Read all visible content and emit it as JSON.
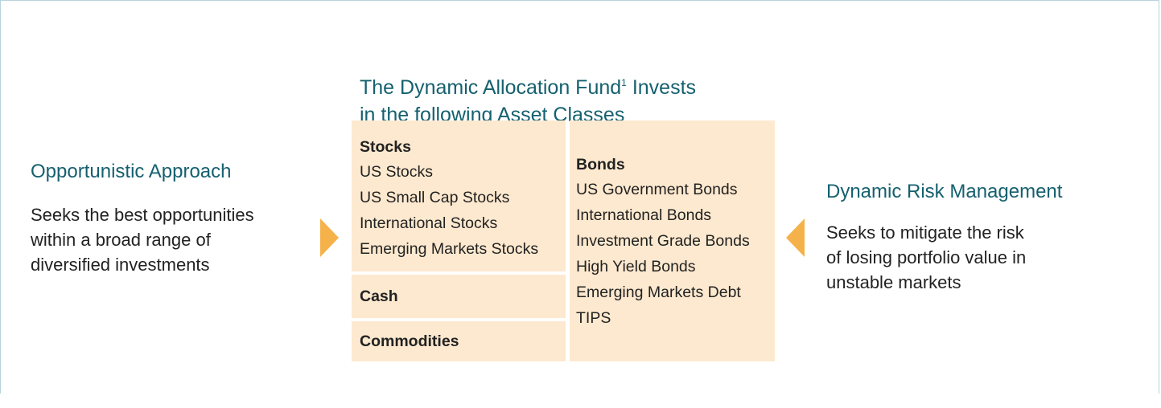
{
  "title": {
    "line1": "The Dynamic Allocation Fund",
    "footnote": "1",
    "line1_end": "Invests",
    "line2": "in the following Asset Classes"
  },
  "left": {
    "heading": "Opportunistic Approach",
    "body": [
      "Seeks the best opportunities",
      "within a broad range of",
      "diversified investments"
    ]
  },
  "right": {
    "heading": "Dynamic Risk Management",
    "body": [
      "Seeks to mitigate the risk",
      "of losing portfolio value in",
      "unstable markets"
    ]
  },
  "stocks": {
    "heading": "Stocks",
    "items": [
      "US Stocks",
      "US Small Cap Stocks",
      "International Stocks",
      "Emerging Markets Stocks"
    ]
  },
  "cash": {
    "heading": "Cash"
  },
  "commodities": {
    "heading": "Commodities"
  },
  "bonds": {
    "heading": "Bonds",
    "items": [
      "US Government Bonds",
      "International Bonds",
      "Investment Grade Bonds",
      "High Yield Bonds",
      "Emerging Markets Debt",
      "TIPS"
    ]
  }
}
